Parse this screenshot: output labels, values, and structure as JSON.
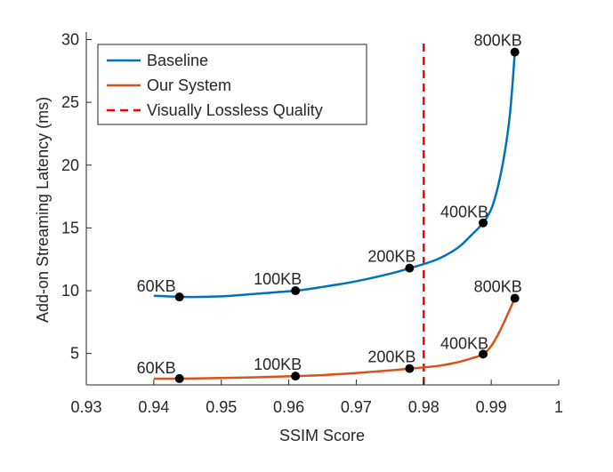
{
  "chart_data": {
    "type": "line",
    "title": "",
    "xlabel": "SSIM Score",
    "ylabel": "Add-on Streaming Latency (ms)",
    "xlim": [
      0.93,
      1.0
    ],
    "ylim": [
      2.5,
      30.6
    ],
    "x_ticks": [
      0.93,
      0.94,
      0.95,
      0.96,
      0.97,
      0.98,
      0.99,
      1.0
    ],
    "x_tick_labels": [
      "0.93",
      "0.94",
      "0.95",
      "0.96",
      "0.97",
      "0.98",
      "0.99",
      "1"
    ],
    "y_ticks": [
      5,
      10,
      15,
      20,
      25,
      30
    ],
    "y_tick_labels": [
      "5",
      "10",
      "15",
      "20",
      "25",
      "30"
    ],
    "grid": false,
    "legend_position": "top-left",
    "colors": {
      "baseline": "#0072BD",
      "our_system": "#D95319",
      "threshold": "#FF0000",
      "marker": "#000000",
      "axis": "#262626"
    },
    "series": [
      {
        "name": "Baseline",
        "key": "baseline",
        "curve": [
          [
            0.94,
            9.6
          ],
          [
            0.945,
            9.5
          ],
          [
            0.95,
            9.55
          ],
          [
            0.955,
            9.75
          ],
          [
            0.961,
            10.0
          ],
          [
            0.965,
            10.3
          ],
          [
            0.97,
            10.75
          ],
          [
            0.975,
            11.35
          ],
          [
            0.978,
            11.8
          ],
          [
            0.982,
            12.5
          ],
          [
            0.985,
            13.4
          ],
          [
            0.987,
            14.4
          ],
          [
            0.9888,
            15.4
          ],
          [
            0.99,
            16.5
          ],
          [
            0.991,
            18.3
          ],
          [
            0.992,
            21.0
          ],
          [
            0.9928,
            24.2
          ],
          [
            0.9935,
            29.0
          ]
        ],
        "points": [
          {
            "x": 0.9438,
            "y": 9.5,
            "label": "60KB"
          },
          {
            "x": 0.961,
            "y": 10.0,
            "label": "100KB"
          },
          {
            "x": 0.9779,
            "y": 11.8,
            "label": "200KB"
          },
          {
            "x": 0.9888,
            "y": 15.4,
            "label": "400KB"
          },
          {
            "x": 0.9935,
            "y": 29.0,
            "label": "800KB"
          }
        ]
      },
      {
        "name": "Our System",
        "key": "our_system",
        "curve": [
          [
            0.94,
            3.0
          ],
          [
            0.9438,
            3.0
          ],
          [
            0.95,
            3.05
          ],
          [
            0.955,
            3.1
          ],
          [
            0.961,
            3.2
          ],
          [
            0.965,
            3.28
          ],
          [
            0.97,
            3.45
          ],
          [
            0.975,
            3.65
          ],
          [
            0.978,
            3.8
          ],
          [
            0.982,
            4.0
          ],
          [
            0.985,
            4.3
          ],
          [
            0.987,
            4.6
          ],
          [
            0.9888,
            4.95
          ],
          [
            0.99,
            5.6
          ],
          [
            0.991,
            6.5
          ],
          [
            0.992,
            7.6
          ],
          [
            0.9935,
            9.4
          ]
        ],
        "points": [
          {
            "x": 0.9438,
            "y": 3.0,
            "label": "60KB"
          },
          {
            "x": 0.961,
            "y": 3.2,
            "label": "100KB"
          },
          {
            "x": 0.9779,
            "y": 3.8,
            "label": "200KB"
          },
          {
            "x": 0.9888,
            "y": 4.95,
            "label": "400KB"
          },
          {
            "x": 0.9935,
            "y": 9.4,
            "label": "800KB"
          }
        ]
      }
    ],
    "threshold": {
      "name": "Visually Lossless Quality",
      "key": "threshold",
      "x": 0.98,
      "style": "dashed"
    }
  }
}
